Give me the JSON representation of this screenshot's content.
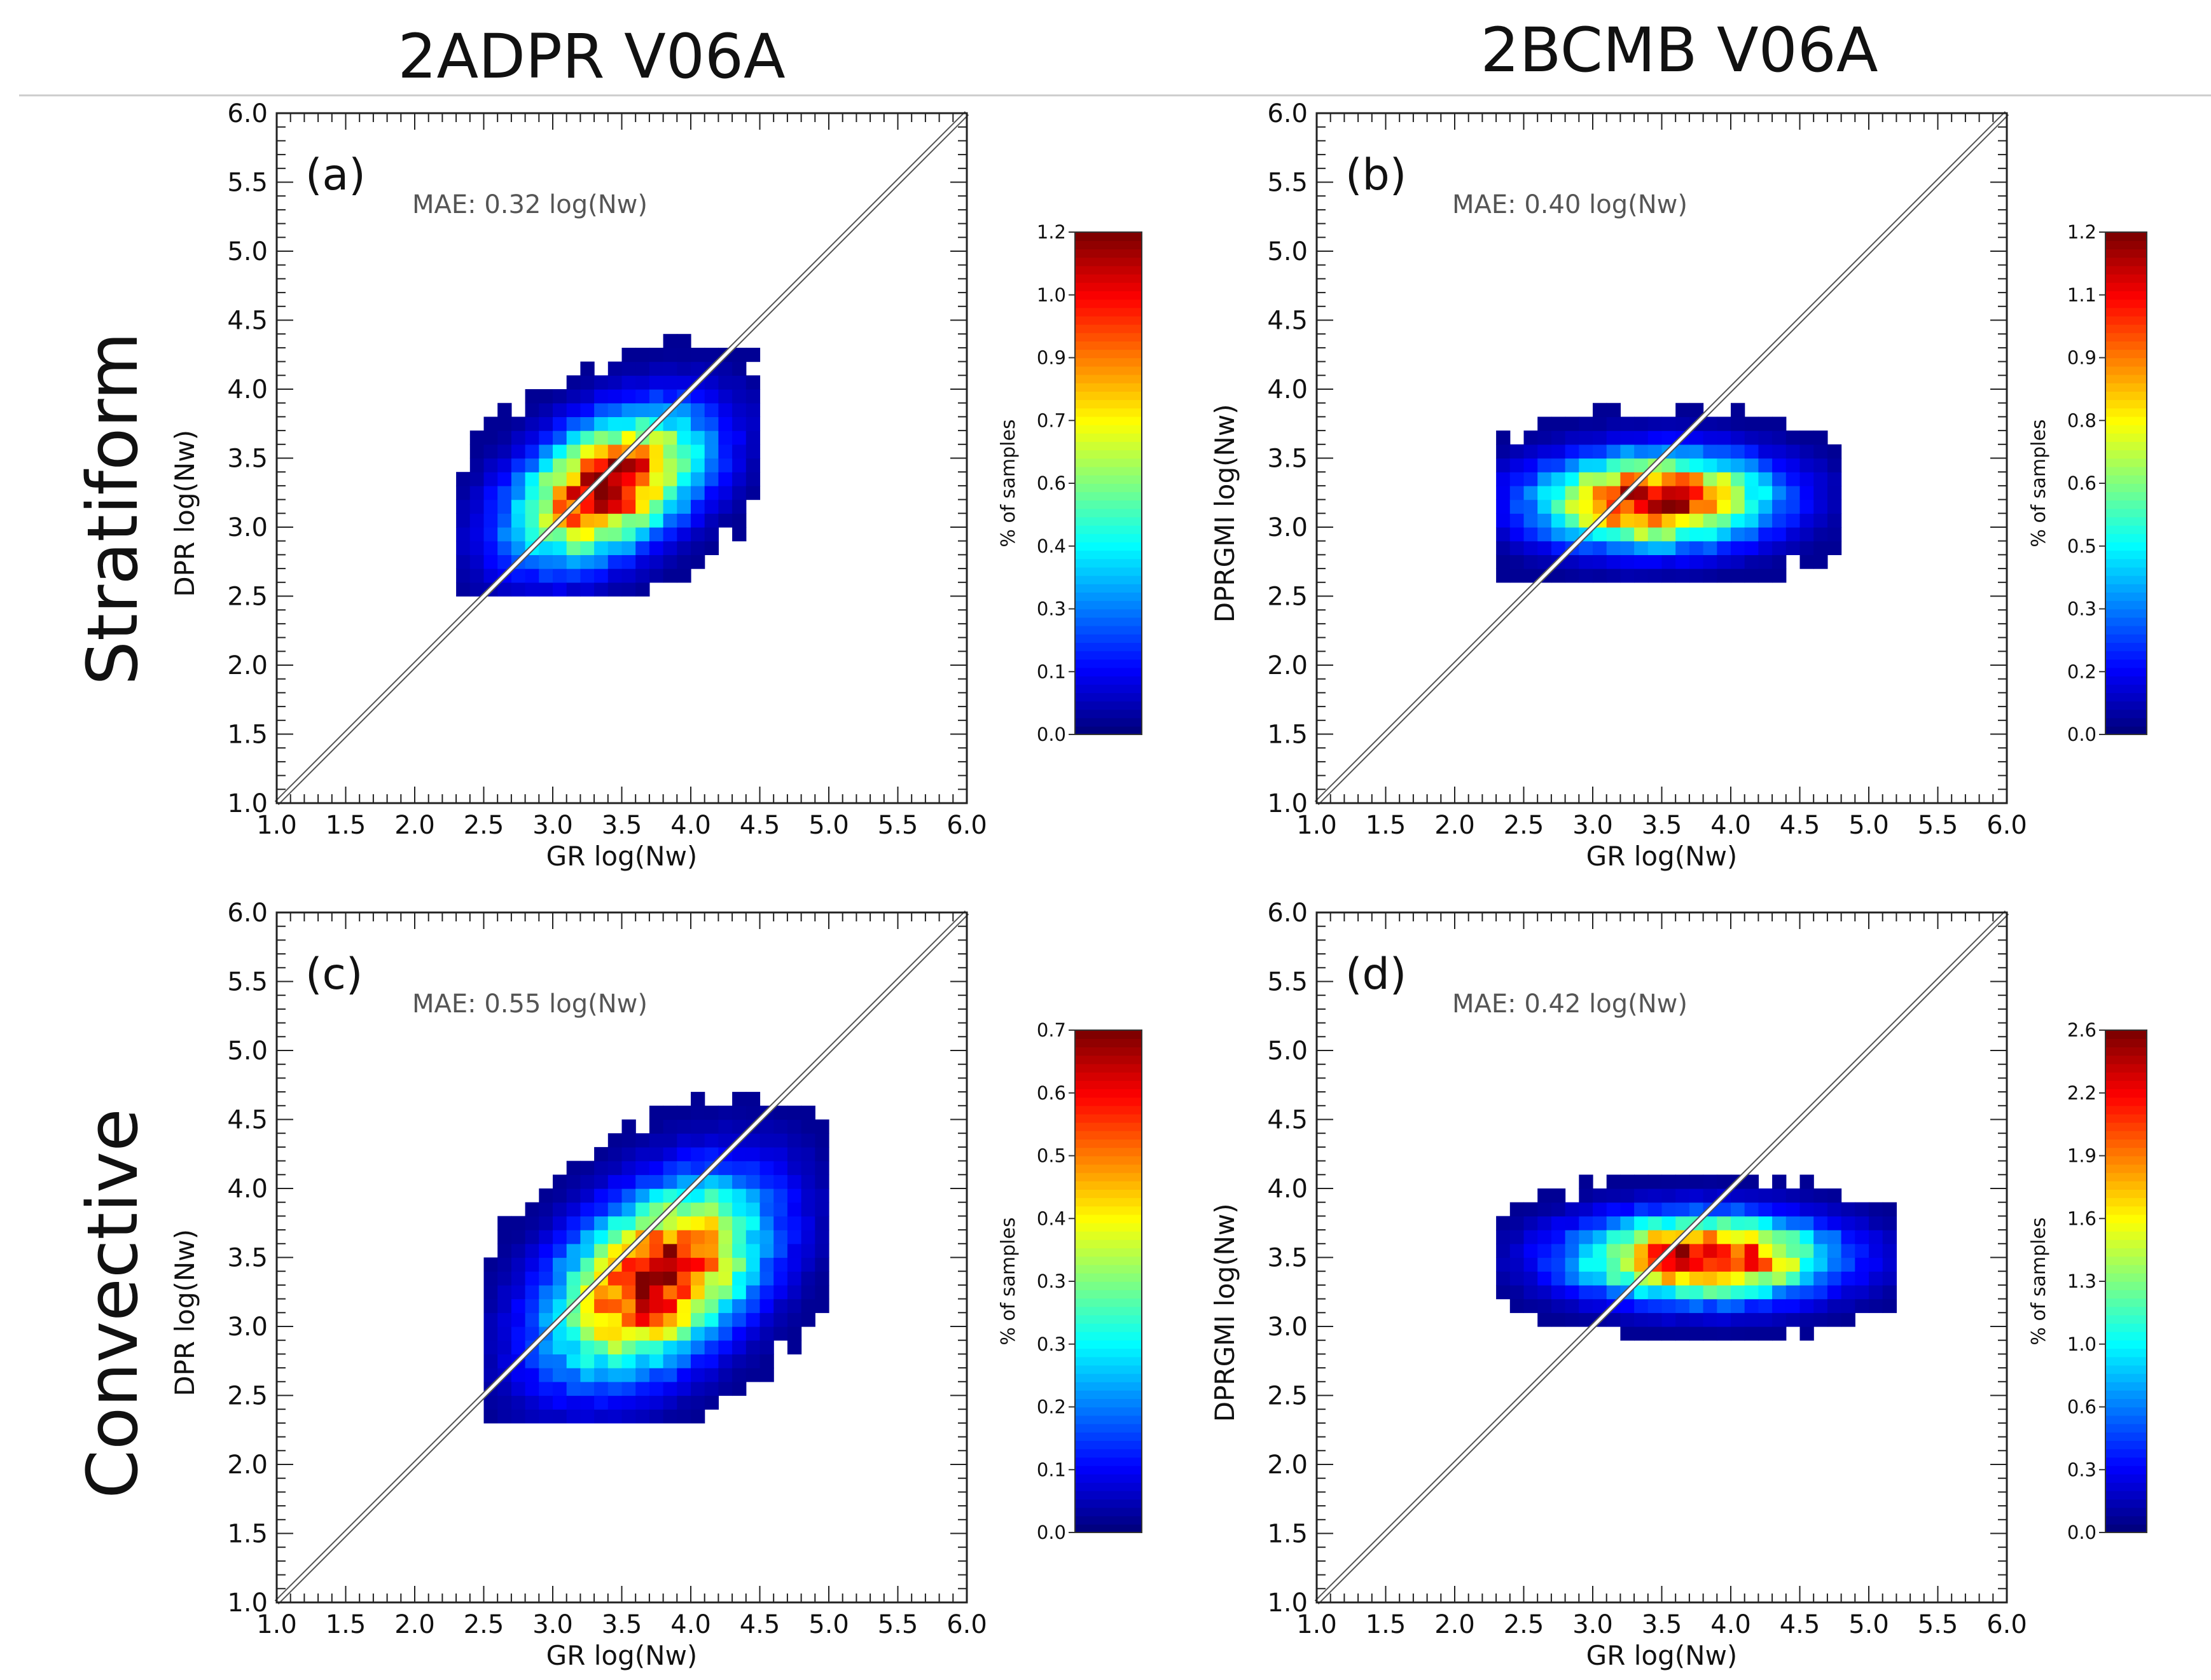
{
  "figure": {
    "column_titles": [
      "2ADPR V06A",
      "2BCMB V06A"
    ],
    "row_labels": [
      "Stratiform",
      "Convective"
    ]
  },
  "chart_data": [
    {
      "type": "heatmap",
      "panel_label": "(a)",
      "annotation": "MAE: 0.32 log(Nw)",
      "xlabel": "GR log(Nw)",
      "ylabel": "DPR log(Nw)",
      "xlim": [
        1.0,
        6.0
      ],
      "ylim": [
        1.0,
        6.0
      ],
      "ticks": [
        "1.0",
        "1.5",
        "2.0",
        "2.5",
        "3.0",
        "3.5",
        "4.0",
        "4.5",
        "5.0",
        "5.5",
        "6.0"
      ],
      "one_to_one_line": true,
      "colorbar": {
        "label": "% of samples",
        "min": 0.0,
        "max": 1.2,
        "ticks": [
          "0.0",
          "0.1",
          "0.3",
          "0.4",
          "0.6",
          "0.7",
          "0.9",
          "1.0",
          "1.2"
        ]
      },
      "density": {
        "center": [
          3.4,
          3.3
        ],
        "spread": [
          0.45,
          0.35
        ],
        "rho": 0.45,
        "peak": 1.15,
        "x_range": [
          2.3,
          4.5
        ],
        "y_range": [
          2.5,
          4.4
        ]
      }
    },
    {
      "type": "heatmap",
      "panel_label": "(b)",
      "annotation": "MAE: 0.40 log(Nw)",
      "xlabel": "GR log(Nw)",
      "ylabel": "DPRGMI log(Nw)",
      "xlim": [
        1.0,
        6.0
      ],
      "ylim": [
        1.0,
        6.0
      ],
      "ticks": [
        "1.0",
        "1.5",
        "2.0",
        "2.5",
        "3.0",
        "3.5",
        "4.0",
        "4.5",
        "5.0",
        "5.5",
        "6.0"
      ],
      "one_to_one_line": true,
      "colorbar": {
        "label": "% of samples",
        "min": 0.0,
        "max": 1.2,
        "ticks": [
          "0.0",
          "0.2",
          "0.3",
          "0.5",
          "0.6",
          "0.8",
          "0.9",
          "1.1",
          "1.2"
        ]
      },
      "density": {
        "center": [
          3.45,
          3.2
        ],
        "spread": [
          0.55,
          0.22
        ],
        "rho": 0.05,
        "peak": 1.15,
        "x_range": [
          2.3,
          4.8
        ],
        "y_range": [
          2.6,
          3.9
        ]
      }
    },
    {
      "type": "heatmap",
      "panel_label": "(c)",
      "annotation": "MAE: 0.55 log(Nw)",
      "xlabel": "GR log(Nw)",
      "ylabel": "DPR log(Nw)",
      "xlim": [
        1.0,
        6.0
      ],
      "ylim": [
        1.0,
        6.0
      ],
      "ticks": [
        "1.0",
        "1.5",
        "2.0",
        "2.5",
        "3.0",
        "3.5",
        "4.0",
        "4.5",
        "5.0",
        "5.5",
        "6.0"
      ],
      "one_to_one_line": true,
      "colorbar": {
        "label": "% of samples",
        "min": 0.0,
        "max": 0.7,
        "ticks": [
          "0.0",
          "0.1",
          "0.2",
          "0.3",
          "0.3",
          "0.4",
          "0.5",
          "0.6",
          "0.7"
        ]
      },
      "density": {
        "center": [
          3.75,
          3.35
        ],
        "spread": [
          0.5,
          0.45
        ],
        "rho": 0.45,
        "peak": 0.68,
        "x_range": [
          2.5,
          5.0
        ],
        "y_range": [
          2.3,
          4.7
        ]
      }
    },
    {
      "type": "heatmap",
      "panel_label": "(d)",
      "annotation": "MAE: 0.42 log(Nw)",
      "xlabel": "GR log(Nw)",
      "ylabel": "DPRGMI log(Nw)",
      "xlim": [
        1.0,
        6.0
      ],
      "ylim": [
        1.0,
        6.0
      ],
      "ticks": [
        "1.0",
        "1.5",
        "2.0",
        "2.5",
        "3.0",
        "3.5",
        "4.0",
        "4.5",
        "5.0",
        "5.5",
        "6.0"
      ],
      "one_to_one_line": true,
      "colorbar": {
        "label": "% of samples",
        "min": 0.0,
        "max": 2.6,
        "ticks": [
          "0.0",
          "0.3",
          "0.6",
          "1.0",
          "1.3",
          "1.6",
          "1.9",
          "2.2",
          "2.6"
        ]
      },
      "density": {
        "center": [
          3.8,
          3.5
        ],
        "spread": [
          0.6,
          0.2
        ],
        "rho": 0.0,
        "peak": 2.5,
        "x_range": [
          2.3,
          5.2
        ],
        "y_range": [
          2.9,
          4.3
        ]
      }
    }
  ]
}
